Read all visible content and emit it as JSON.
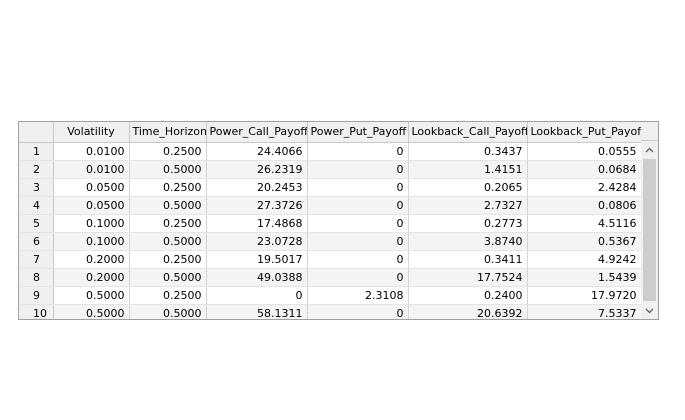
{
  "table": {
    "columns": [
      "",
      "Volatility",
      "Time_Horizon",
      "Power_Call_Payoff",
      "Power_Put_Payoff",
      "Lookback_Call_Payoff",
      "Lookback_Put_Payoff"
    ],
    "rows": [
      [
        "1",
        "0.0100",
        "0.2500",
        "24.4066",
        "0",
        "0.3437",
        "0.0555"
      ],
      [
        "2",
        "0.0100",
        "0.5000",
        "26.2319",
        "0",
        "1.4151",
        "0.0684"
      ],
      [
        "3",
        "0.0500",
        "0.2500",
        "20.2453",
        "0",
        "0.2065",
        "2.4284"
      ],
      [
        "4",
        "0.0500",
        "0.5000",
        "27.3726",
        "0",
        "2.7327",
        "0.0806"
      ],
      [
        "5",
        "0.1000",
        "0.2500",
        "17.4868",
        "0",
        "0.2773",
        "4.5116"
      ],
      [
        "6",
        "0.1000",
        "0.5000",
        "23.0728",
        "0",
        "3.8740",
        "0.5367"
      ],
      [
        "7",
        "0.2000",
        "0.2500",
        "19.5017",
        "0",
        "0.3411",
        "4.9242"
      ],
      [
        "8",
        "0.2000",
        "0.5000",
        "49.0388",
        "0",
        "17.7524",
        "1.5439"
      ],
      [
        "9",
        "0.5000",
        "0.2500",
        "0",
        "2.3108",
        "0.2400",
        "17.9720"
      ],
      [
        "10",
        "0.5000",
        "0.5000",
        "58.1311",
        "0",
        "20.6392",
        "7.5337"
      ]
    ]
  },
  "scrollbar": {
    "up_icon": "chevron-up-icon",
    "down_icon": "chevron-down-icon"
  }
}
